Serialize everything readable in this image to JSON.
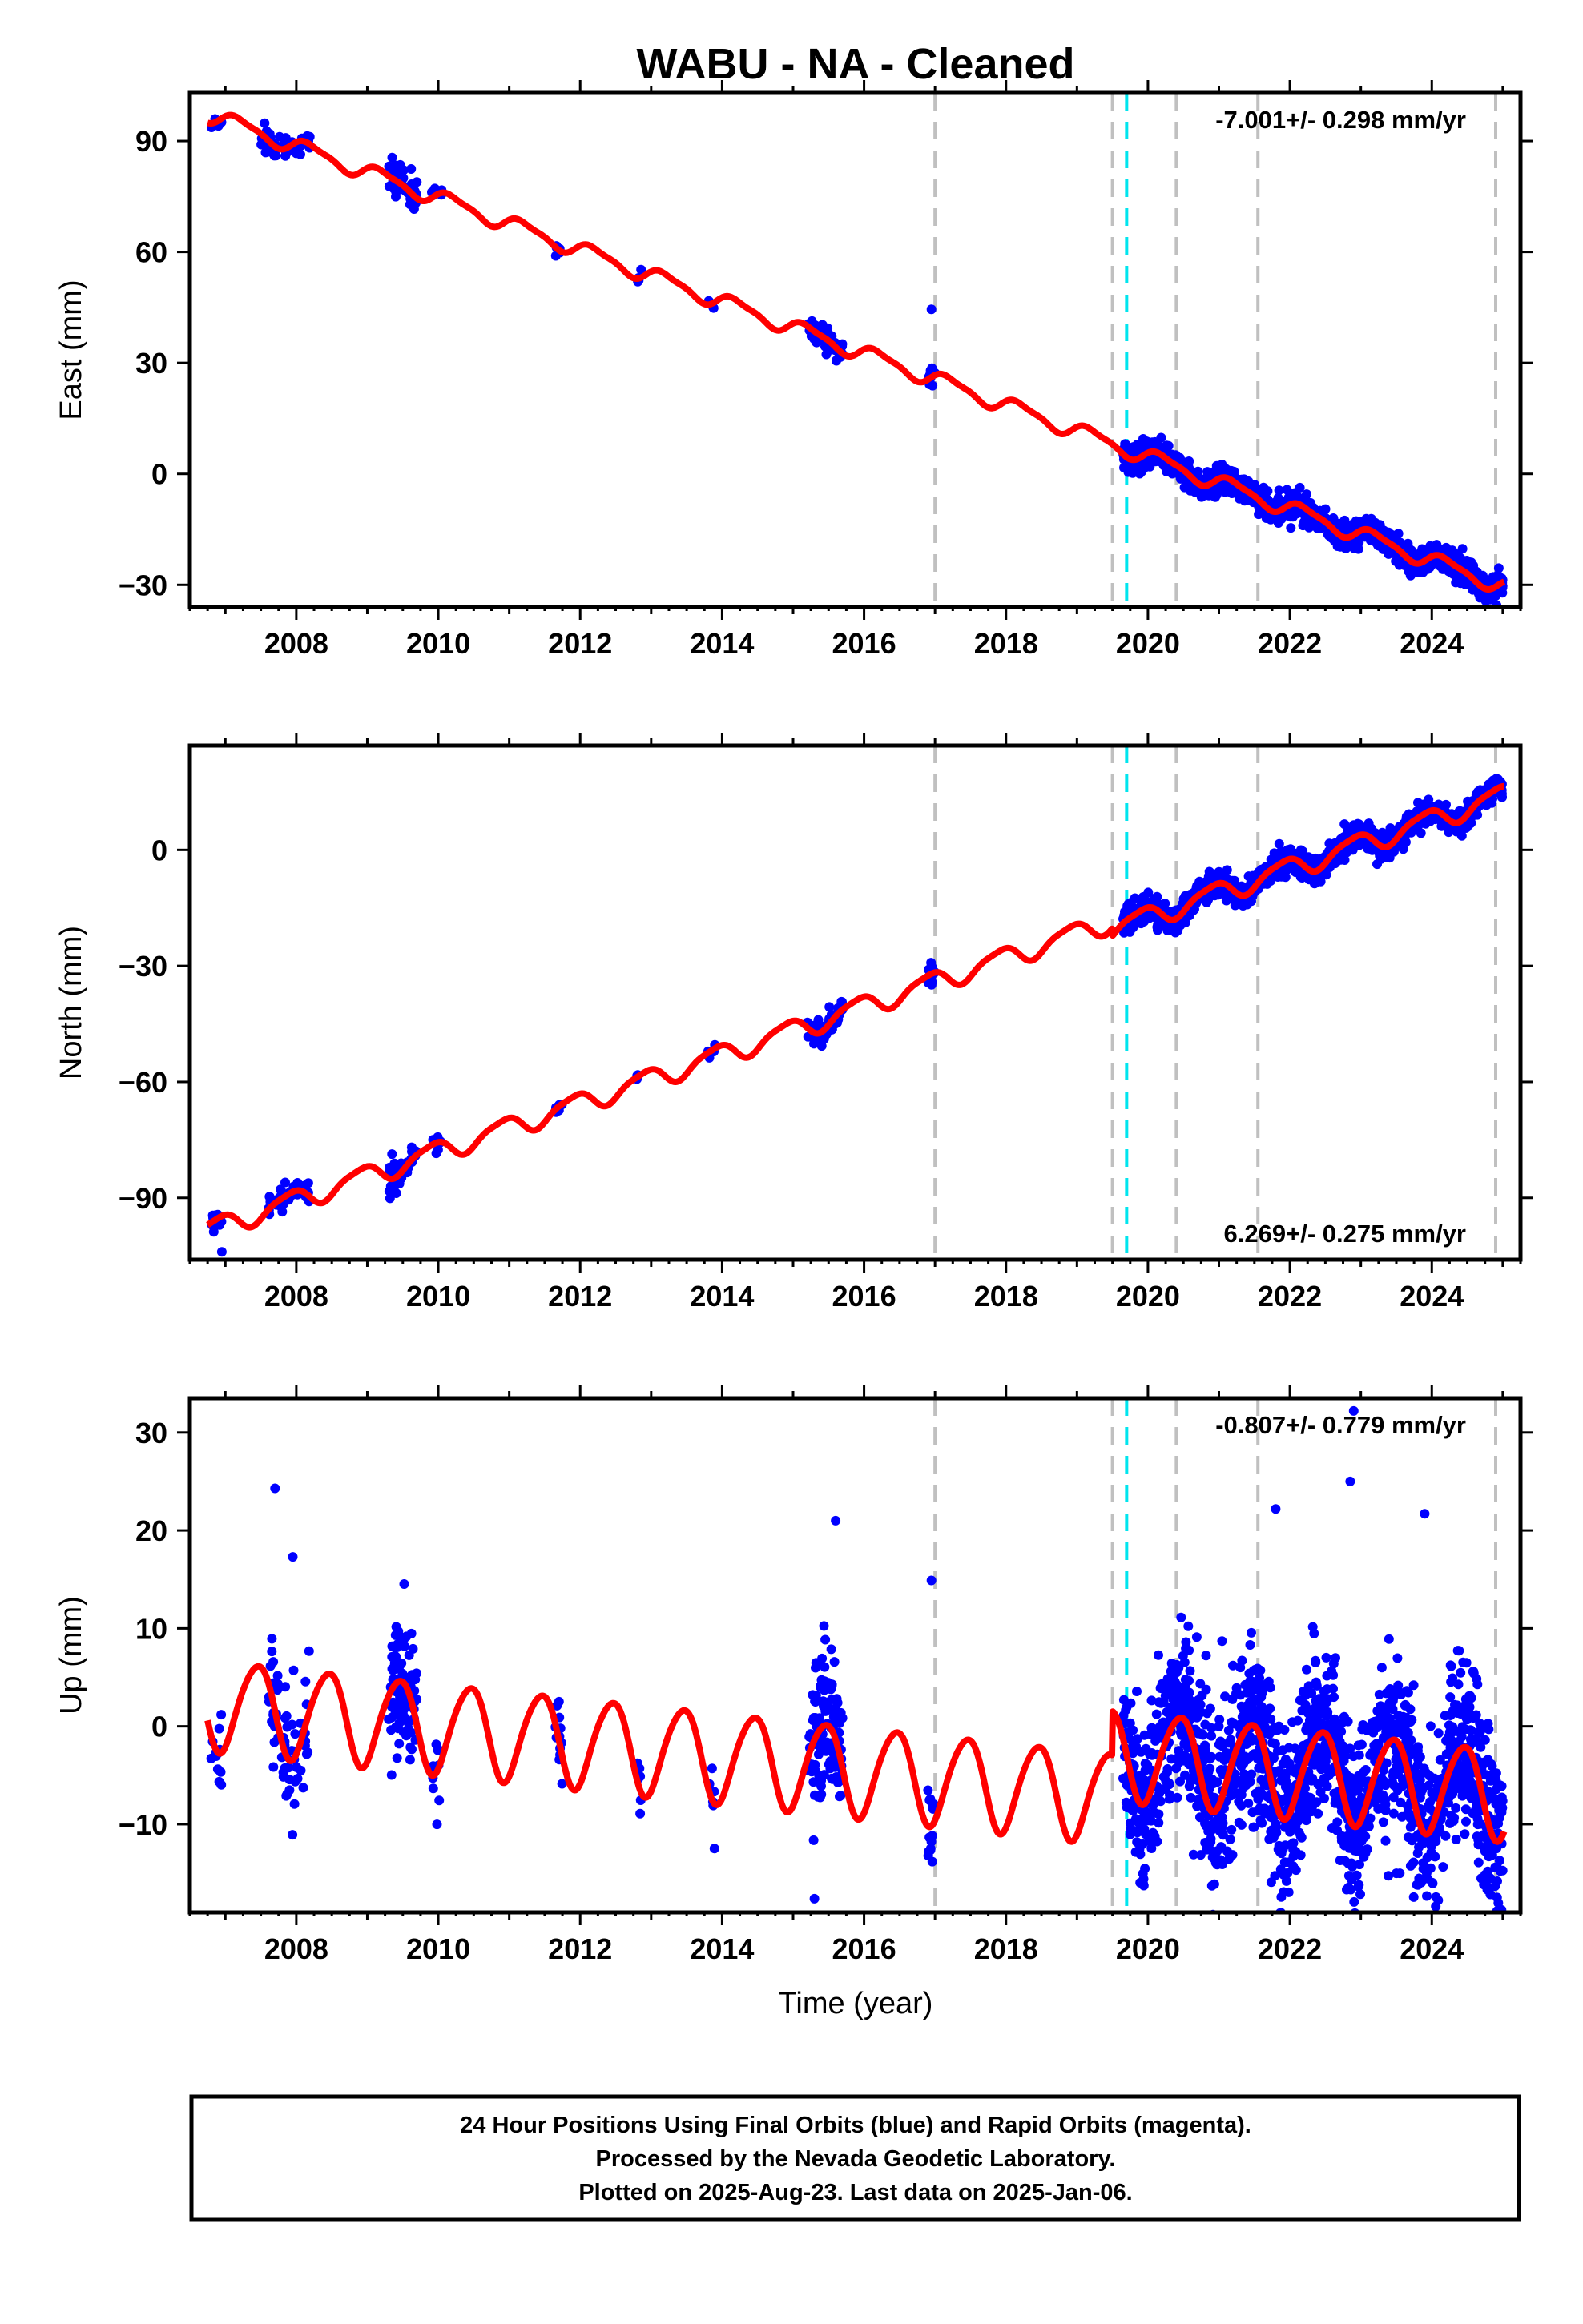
{
  "title": "WABU  - NA - Cleaned",
  "xlabel": "Time (year)",
  "footer": {
    "line1": "24 Hour Positions Using Final Orbits (blue) and Rapid Orbits (magenta).",
    "line2": "Processed by the Nevada Geodetic Laboratory.",
    "line3": "Plotted on 2025-Aug-23. Last data on 2025-Jan-06."
  },
  "colors": {
    "data": "#0000ff",
    "model": "#ff0000",
    "event_line": "#c0c0c0",
    "antenna_line": "#00e5ee",
    "frame": "#000000"
  },
  "chart_data": [
    {
      "type": "scatter",
      "component": "east",
      "ylabel": "East (mm)",
      "rate_label": "-7.001+/- 0.298 mm/yr",
      "rate_position": "top-right",
      "xlim": [
        2006.5,
        2025.25
      ],
      "ylim": [
        -36,
        103
      ],
      "xticks": [
        2008,
        2010,
        2012,
        2014,
        2016,
        2018,
        2020,
        2022,
        2024
      ],
      "xtick_labels": [
        "2008",
        "2010",
        "2012",
        "2014",
        "2016",
        "2018",
        "2020",
        "2022",
        "2024"
      ],
      "yticks": [
        -30,
        0,
        30,
        60,
        90
      ],
      "ytick_labels": [
        "−30",
        "0",
        "30",
        "60",
        "90"
      ],
      "model": {
        "x0": 2006.8,
        "intercept": 97,
        "slope": -7.0,
        "amp_annual": 2.0,
        "phase_annual": 0.3,
        "amp_semi": 0.6,
        "phase_semi": 1.0,
        "offsets": [
          {
            "t": 2019.5,
            "dy": 0
          }
        ]
      },
      "segments": [
        {
          "t0": 2006.8,
          "t1": 2006.95,
          "n": 12,
          "noise": 1.0
        },
        {
          "t0": 2007.5,
          "t1": 2008.2,
          "n": 50,
          "noise": 1.6
        },
        {
          "t0": 2009.3,
          "t1": 2009.7,
          "n": 45,
          "noise": 2.5
        },
        {
          "t0": 2009.9,
          "t1": 2010.05,
          "n": 8,
          "noise": 1.2
        },
        {
          "t0": 2011.65,
          "t1": 2011.75,
          "n": 8,
          "noise": 1.0
        },
        {
          "t0": 2012.8,
          "t1": 2012.86,
          "n": 4,
          "noise": 0.8
        },
        {
          "t0": 2013.8,
          "t1": 2013.9,
          "n": 4,
          "noise": 0.8
        },
        {
          "t0": 2015.2,
          "t1": 2015.7,
          "n": 70,
          "noise": 1.6
        },
        {
          "t0": 2016.9,
          "t1": 2017.0,
          "n": 10,
          "noise": 1.2
        },
        {
          "t0": 2019.65,
          "t1": 2025.0,
          "n": 1500,
          "noise": 1.7
        }
      ],
      "outliers": [
        [
          2016.95,
          44.5
        ],
        [
          2009.35,
          85.5
        ],
        [
          2024.9,
          -33
        ]
      ],
      "event_lines": [
        2017.0,
        2019.5,
        2020.4,
        2021.55,
        2024.9
      ],
      "antenna_lines": [
        2019.7
      ]
    },
    {
      "type": "scatter",
      "component": "north",
      "ylabel": "North (mm)",
      "rate_label": "6.269+/- 0.275 mm/yr",
      "rate_position": "bottom-right",
      "xlim": [
        2006.5,
        2025.25
      ],
      "ylim": [
        -106,
        27
      ],
      "xticks": [
        2008,
        2010,
        2012,
        2014,
        2016,
        2018,
        2020,
        2022,
        2024
      ],
      "xtick_labels": [
        "2008",
        "2010",
        "2012",
        "2014",
        "2016",
        "2018",
        "2020",
        "2022",
        "2024"
      ],
      "yticks": [
        -90,
        -60,
        -30,
        0
      ],
      "ytick_labels": [
        "−90",
        "−60",
        "−30",
        "0"
      ],
      "model": {
        "x0": 2006.8,
        "intercept": -98,
        "slope": 6.27,
        "amp_annual": 2.6,
        "phase_annual": 2.2,
        "amp_semi": 0.6,
        "phase_semi": 0.4,
        "offsets": [
          {
            "t": 2019.5,
            "dy": -2
          }
        ]
      },
      "segments": [
        {
          "t0": 2006.8,
          "t1": 2006.95,
          "n": 12,
          "noise": 1.5
        },
        {
          "t0": 2007.6,
          "t1": 2008.2,
          "n": 45,
          "noise": 1.5
        },
        {
          "t0": 2009.3,
          "t1": 2009.7,
          "n": 45,
          "noise": 2.2
        },
        {
          "t0": 2009.9,
          "t1": 2010.05,
          "n": 8,
          "noise": 1.2
        },
        {
          "t0": 2011.65,
          "t1": 2011.75,
          "n": 8,
          "noise": 1.0
        },
        {
          "t0": 2012.8,
          "t1": 2012.86,
          "n": 4,
          "noise": 0.8
        },
        {
          "t0": 2013.8,
          "t1": 2013.9,
          "n": 4,
          "noise": 0.8
        },
        {
          "t0": 2015.2,
          "t1": 2015.7,
          "n": 70,
          "noise": 1.6
        },
        {
          "t0": 2016.9,
          "t1": 2017.0,
          "n": 10,
          "noise": 1.5
        },
        {
          "t0": 2019.65,
          "t1": 2025.0,
          "n": 1500,
          "noise": 1.6
        }
      ],
      "outliers": [
        [
          2006.95,
          -104
        ],
        [
          2016.95,
          -30
        ]
      ],
      "event_lines": [
        2017.0,
        2019.5,
        2020.4,
        2021.55,
        2024.9
      ],
      "antenna_lines": [
        2019.7
      ]
    },
    {
      "type": "scatter",
      "component": "up",
      "ylabel": "Up (mm)",
      "rate_label": "-0.807+/- 0.779 mm/yr",
      "rate_position": "top-right",
      "xlim": [
        2006.5,
        2025.25
      ],
      "ylim": [
        -19,
        33.5
      ],
      "xticks": [
        2008,
        2010,
        2012,
        2014,
        2016,
        2018,
        2020,
        2022,
        2024
      ],
      "xtick_labels": [
        "2008",
        "2010",
        "2012",
        "2014",
        "2016",
        "2018",
        "2020",
        "2022",
        "2024"
      ],
      "yticks": [
        -10,
        0,
        10,
        20,
        30
      ],
      "ytick_labels": [
        "−10",
        "0",
        "10",
        "20",
        "30"
      ],
      "model": {
        "x0": 2006.8,
        "intercept": 2.3,
        "slope": -0.75,
        "amp_annual": 4.6,
        "phase_annual": 5.1,
        "amp_semi": 0.5,
        "phase_semi": 0.0,
        "offsets": [
          {
            "t": 2019.5,
            "dy": 4.5
          }
        ]
      },
      "segments": [
        {
          "t0": 2006.8,
          "t1": 2006.95,
          "n": 12,
          "noise": 2.5
        },
        {
          "t0": 2007.6,
          "t1": 2008.2,
          "n": 60,
          "noise": 3.5
        },
        {
          "t0": 2009.3,
          "t1": 2009.7,
          "n": 90,
          "noise": 3.5
        },
        {
          "t0": 2009.9,
          "t1": 2010.05,
          "n": 10,
          "noise": 2.5
        },
        {
          "t0": 2011.65,
          "t1": 2011.75,
          "n": 12,
          "noise": 3.0
        },
        {
          "t0": 2012.8,
          "t1": 2012.86,
          "n": 6,
          "noise": 2.0
        },
        {
          "t0": 2013.8,
          "t1": 2013.9,
          "n": 6,
          "noise": 2.5
        },
        {
          "t0": 2015.2,
          "t1": 2015.7,
          "n": 130,
          "noise": 4.0
        },
        {
          "t0": 2016.9,
          "t1": 2017.0,
          "n": 15,
          "noise": 3.5
        },
        {
          "t0": 2019.65,
          "t1": 2025.0,
          "n": 1700,
          "noise": 4.2
        }
      ],
      "outliers": [
        [
          2007.7,
          24.3
        ],
        [
          2007.95,
          17.3
        ],
        [
          2015.6,
          21.0
        ],
        [
          2016.95,
          14.9
        ],
        [
          2022.9,
          32.2
        ],
        [
          2022.85,
          25.0
        ],
        [
          2021.8,
          22.2
        ],
        [
          2023.9,
          21.7
        ],
        [
          2015.3,
          -17.6
        ],
        [
          2023.5,
          -15.0
        ]
      ],
      "event_lines": [
        2017.0,
        2019.5,
        2020.4,
        2021.55,
        2024.9
      ],
      "antenna_lines": [
        2019.7
      ]
    }
  ]
}
